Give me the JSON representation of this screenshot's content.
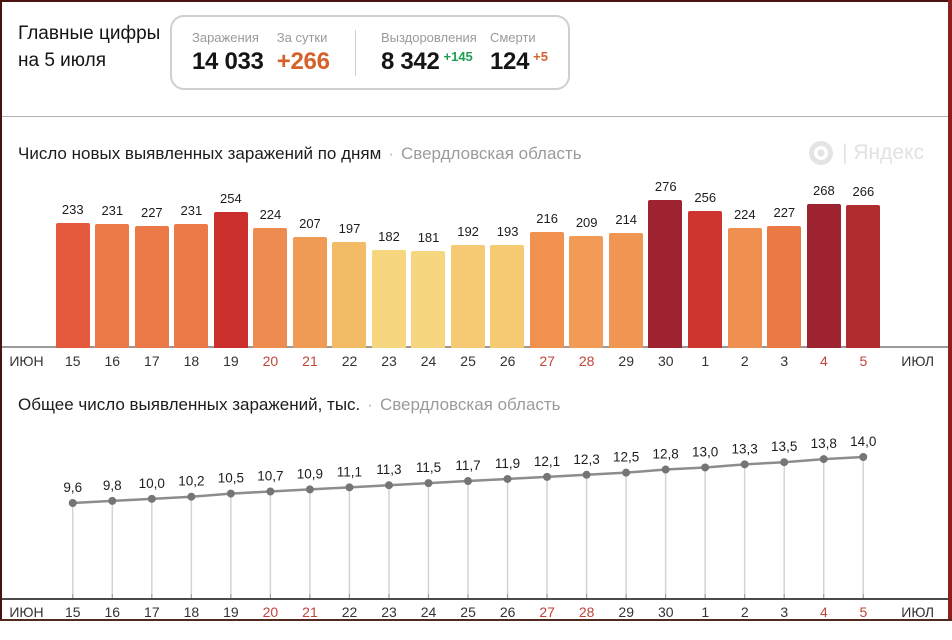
{
  "page": {
    "frame_top_color": "#4a1210",
    "frame_left_color": "#4a1210",
    "frame_right_color": "#8c1f1f",
    "frame_bottom_color": "#52291f"
  },
  "header": {
    "title_line1": "Главные цифры",
    "title_line2": "на 5 июля",
    "stats": [
      {
        "label": "Заражения",
        "value": "14 033",
        "value_color": "#151515",
        "sup": "",
        "sup_color": ""
      },
      {
        "label": "За сутки",
        "value": "+266",
        "value_color": "#d4622a",
        "sup": "",
        "sup_color": ""
      },
      {
        "label": "Выздоровления",
        "value": "8 342",
        "value_color": "#151515",
        "sup": "+145",
        "sup_color": "#1f9e50"
      },
      {
        "label": "Смерти",
        "value": "124",
        "value_color": "#151515",
        "sup": "+5",
        "sup_color": "#d4622a"
      }
    ]
  },
  "bar_section": {
    "title": "Число новых выявленных заражений по дням",
    "separator": "·",
    "region": "Свердловская область",
    "logo_text": "| Яндекс"
  },
  "line_section": {
    "title": "Общее число выявленных заражений, тыс.",
    "separator": "·",
    "region": "Свердловская область"
  },
  "axis": {
    "left_label": "ИЮН",
    "right_label": "ИЮЛ",
    "days": [
      "15",
      "16",
      "17",
      "18",
      "19",
      "20",
      "21",
      "22",
      "23",
      "24",
      "25",
      "26",
      "27",
      "28",
      "29",
      "30",
      "1",
      "2",
      "3",
      "4",
      "5"
    ],
    "weekend_indices": [
      5,
      6,
      12,
      13,
      19,
      20
    ],
    "weekend_color": "#c0453b",
    "label_color": "#333333"
  },
  "chart_data": [
    {
      "type": "bar",
      "title": "Число новых выявленных заражений по дням · Свердловская область",
      "categories": [
        "15 июн",
        "16 июн",
        "17 июн",
        "18 июн",
        "19 июн",
        "20 июн",
        "21 июн",
        "22 июн",
        "23 июн",
        "24 июн",
        "25 июн",
        "26 июн",
        "27 июн",
        "28 июн",
        "29 июн",
        "30 июн",
        "1 июл",
        "2 июл",
        "3 июл",
        "4 июл",
        "5 июл"
      ],
      "values": [
        233,
        231,
        227,
        231,
        254,
        224,
        207,
        197,
        182,
        181,
        192,
        193,
        216,
        209,
        214,
        276,
        256,
        224,
        227,
        268,
        266
      ],
      "bar_colors": [
        "#e55a3c",
        "#ec7a49",
        "#ec7a49",
        "#ec7a49",
        "#cb2f2b",
        "#ee8b50",
        "#f09b53",
        "#f4bb67",
        "#f6d77f",
        "#f6d77f",
        "#f6ca73",
        "#f6ca73",
        "#f09150",
        "#f19b56",
        "#f09552",
        "#9e2331",
        "#ce352e",
        "#ef9050",
        "#eb7946",
        "#9e2331",
        "#b02c2e"
      ],
      "ylim": [
        0,
        276
      ],
      "value_labels_shown": true,
      "grid": false,
      "label_color": "#1d1d1d"
    },
    {
      "type": "line",
      "title": "Общее число выявленных заражений, тыс. · Свердловская область",
      "categories": [
        "15 июн",
        "16 июн",
        "17 июн",
        "18 июн",
        "19 июн",
        "20 июн",
        "21 июн",
        "22 июн",
        "23 июн",
        "24 июн",
        "25 июн",
        "26 июн",
        "27 июн",
        "28 июн",
        "29 июн",
        "30 июн",
        "1 июл",
        "2 июл",
        "3 июл",
        "4 июл",
        "5 июл"
      ],
      "values": [
        9.6,
        9.8,
        10.0,
        10.2,
        10.5,
        10.7,
        10.9,
        11.1,
        11.3,
        11.5,
        11.7,
        11.9,
        12.1,
        12.3,
        12.5,
        12.8,
        13.0,
        13.3,
        13.5,
        13.8,
        14.0
      ],
      "point_labels": [
        "9,6",
        "9,8",
        "10,0",
        "10,2",
        "10,5",
        "10,7",
        "10,9",
        "11,1",
        "11,3",
        "11,5",
        "11,7",
        "11,9",
        "12,1",
        "12,3",
        "12,5",
        "12,8",
        "13,0",
        "13,3",
        "13,5",
        "13,8",
        "14,0"
      ],
      "ylim": [
        9.6,
        14.0
      ],
      "grid": false,
      "line_color": "#8d8d8d",
      "dot_color": "#757575",
      "drop_line_color": "#d4d4d4",
      "axis_color": "#4a4a4a",
      "tick_color": "#9a9a9a",
      "label_color": "#1d1d1d"
    }
  ]
}
